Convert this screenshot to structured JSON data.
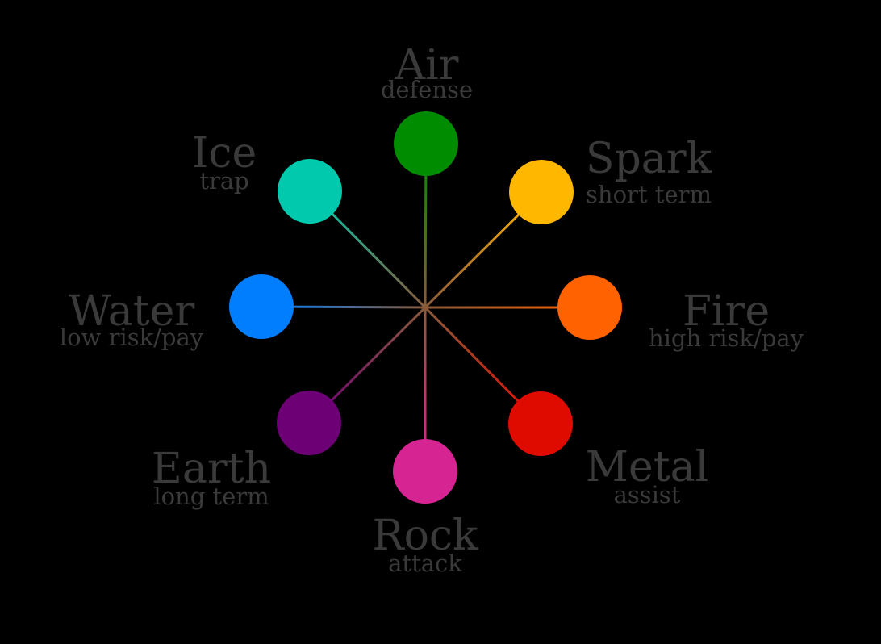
{
  "center_color": "#8a5a3a",
  "elements": [
    {
      "key": "air",
      "name": "Air",
      "description": "defense",
      "color": "#008c00"
    },
    {
      "key": "spark",
      "name": "Spark",
      "description": "short term",
      "color": "#ffb700"
    },
    {
      "key": "fire",
      "name": "Fire",
      "description": "high risk/pay",
      "color": "#ff6200"
    },
    {
      "key": "metal",
      "name": "Metal",
      "description": "assist",
      "color": "#e00b00"
    },
    {
      "key": "rock",
      "name": "Rock",
      "description": "attack",
      "color": "#d62593"
    },
    {
      "key": "earth",
      "name": "Earth",
      "description": "long term",
      "color": "#6e0076"
    },
    {
      "key": "water",
      "name": "Water",
      "description": "low risk/pay",
      "color": "#007efe"
    },
    {
      "key": "ice",
      "name": "Ice",
      "description": "trap",
      "color": "#00c9ae"
    }
  ]
}
